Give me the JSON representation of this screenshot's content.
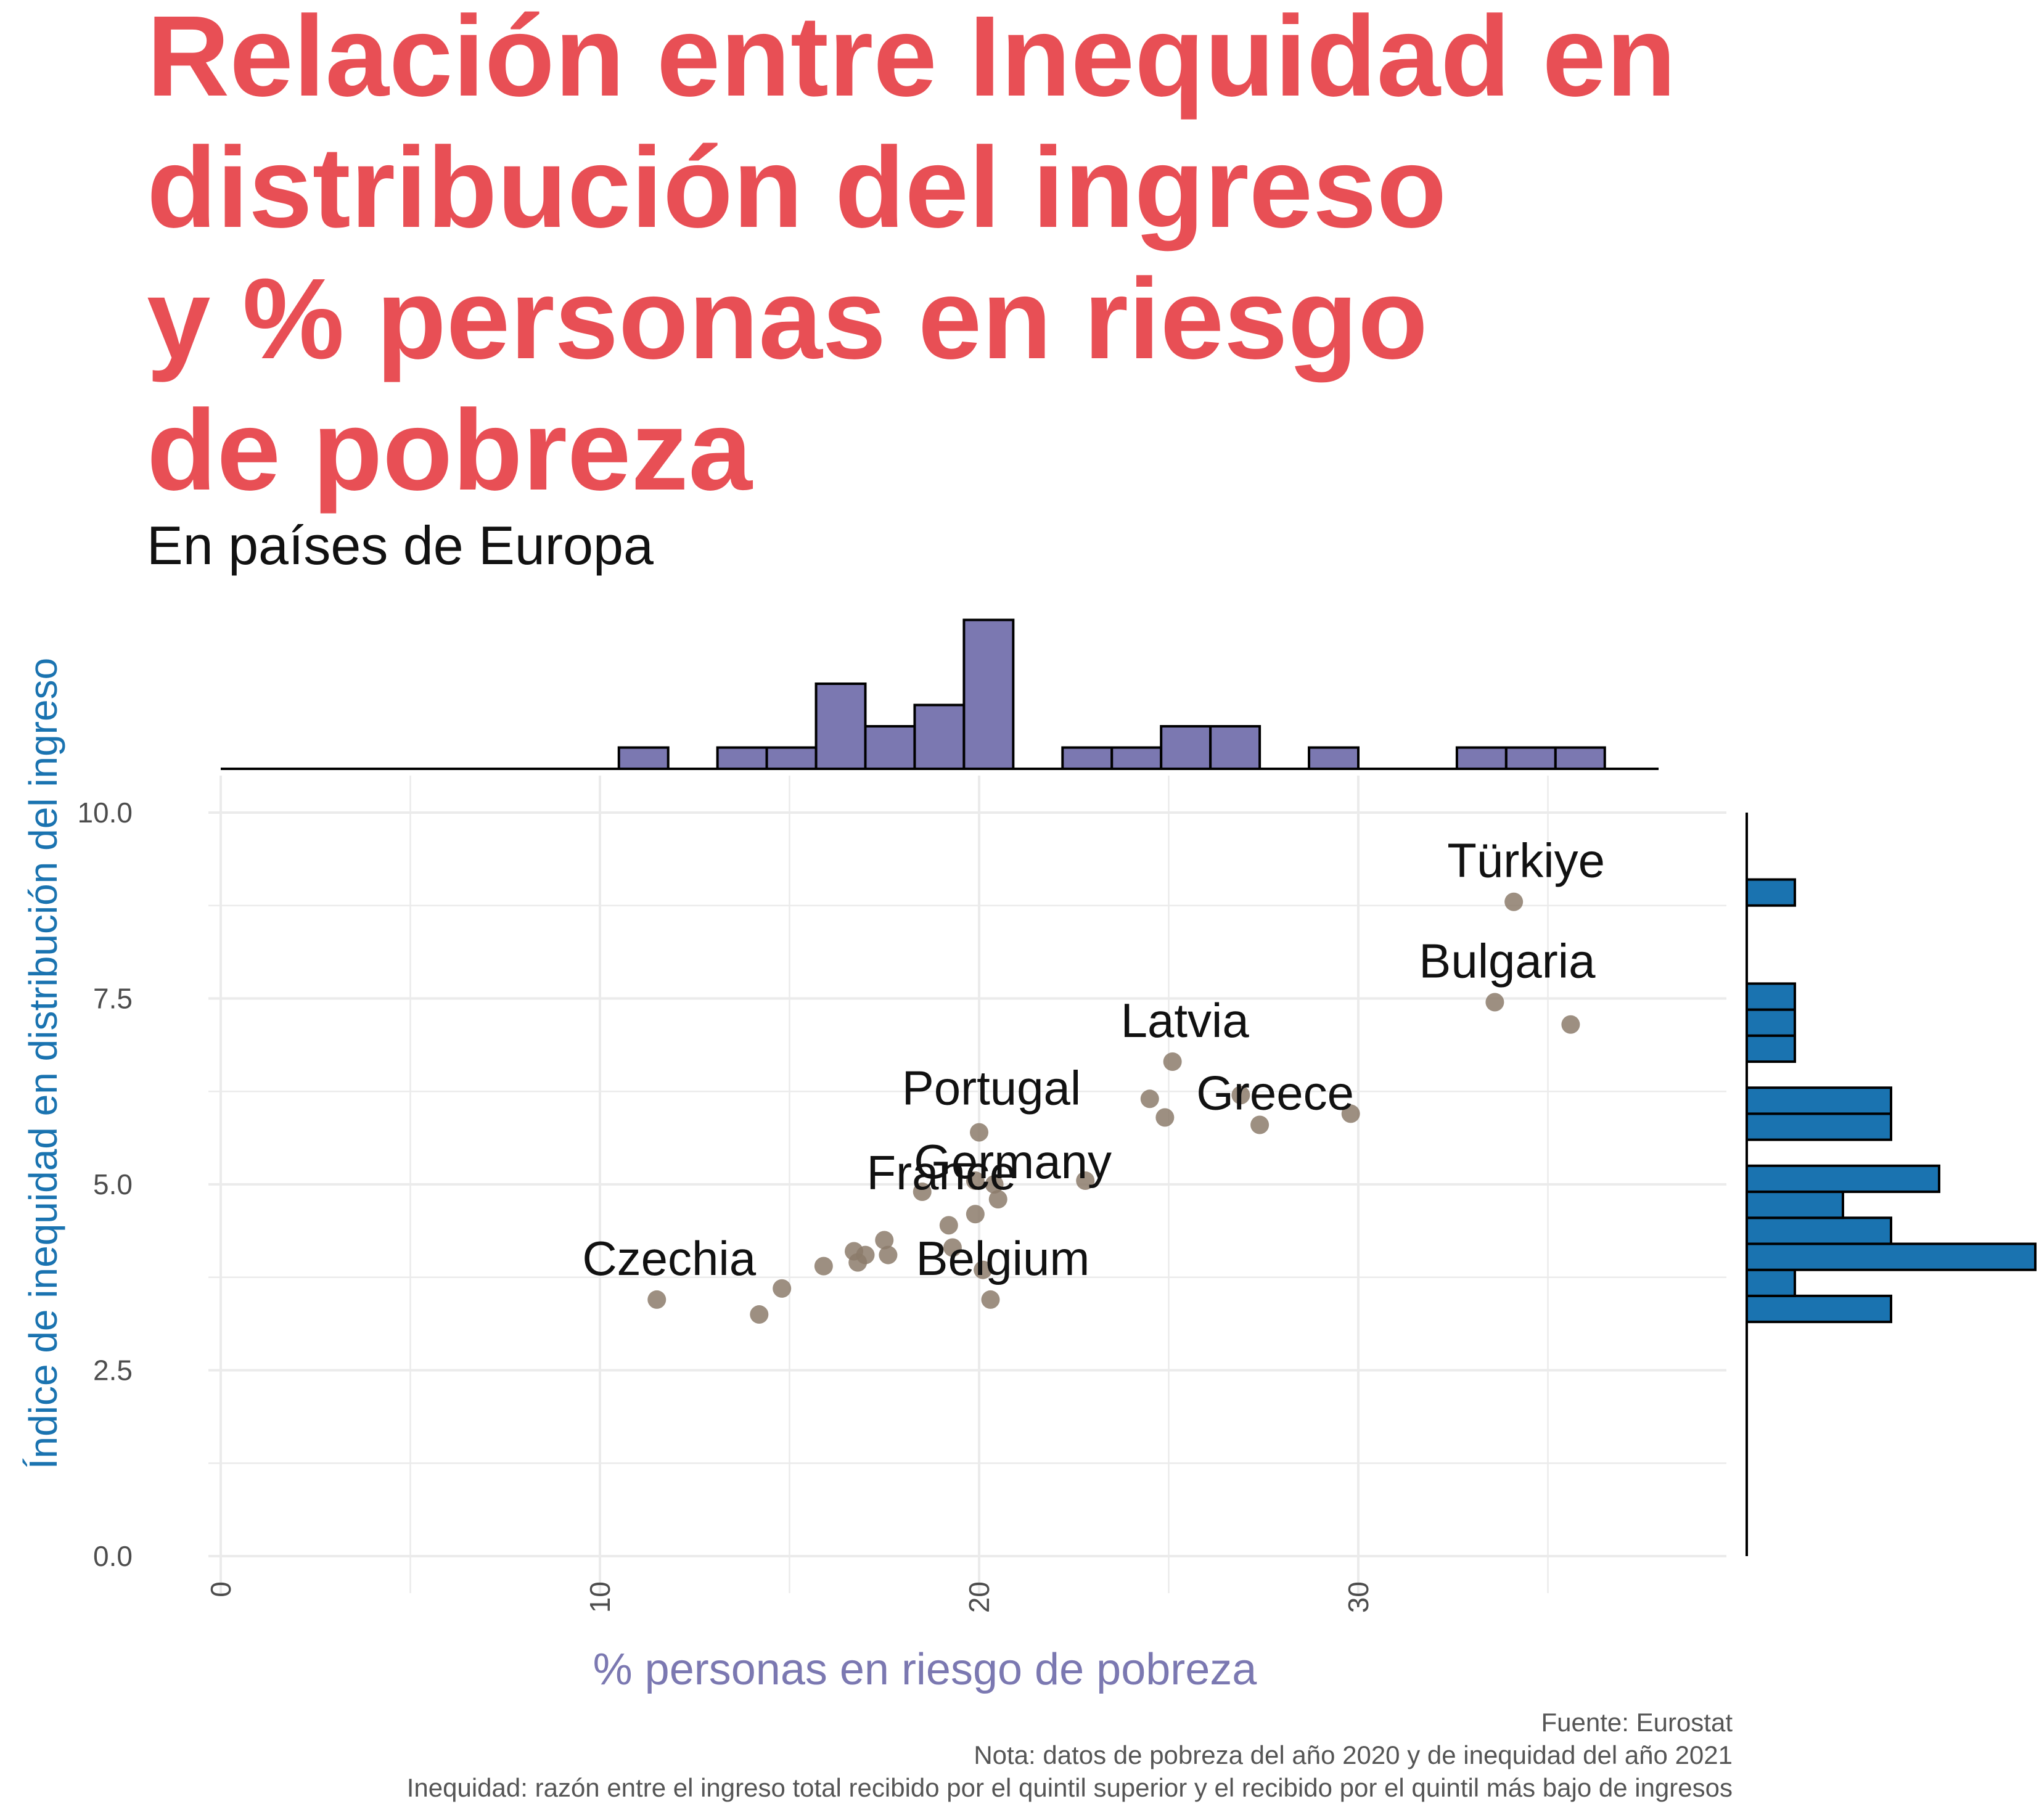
{
  "title_lines": [
    "Relación entre Inequidad en",
    "distribución del ingreso",
    "y % personas en riesgo",
    "de pobreza"
  ],
  "subtitle": "En países de Europa",
  "caption_lines": [
    "Fuente: Eurostat",
    "Nota: datos de pobreza del año 2020 y de inequidad del año 2021",
    "Inequidad: razón entre el ingreso total recibido por el quintil superior y el recibido por el quintil más bajo de ingresos"
  ],
  "colors": {
    "title": "#e84f55",
    "points": "#8c7b6b",
    "x_hist_fill": "#7b78b1",
    "y_hist_fill": "#1a73b0",
    "grid": "#ebebeb"
  },
  "chart_data": {
    "type": "scatter",
    "xlabel": "% personas en riesgo de pobreza",
    "ylabel": "Índice de inequidad en distribución del ingreso",
    "xlim": [
      0,
      37
    ],
    "ylim": [
      0,
      10
    ],
    "x_ticks": [
      "0",
      "10",
      "20",
      "30"
    ],
    "x_tick_values": [
      0,
      10,
      20,
      30
    ],
    "y_ticks": [
      "0.0",
      "2.5",
      "5.0",
      "7.5",
      "10.0"
    ],
    "y_tick_values": [
      0,
      2.5,
      5,
      7.5,
      10
    ],
    "grid": true,
    "points": [
      {
        "x": 11.5,
        "y": 3.45,
        "label": "Czechia"
      },
      {
        "x": 14.2,
        "y": 3.25
      },
      {
        "x": 14.8,
        "y": 3.6
      },
      {
        "x": 15.9,
        "y": 3.9
      },
      {
        "x": 16.7,
        "y": 4.1
      },
      {
        "x": 16.8,
        "y": 3.95
      },
      {
        "x": 17.0,
        "y": 4.05
      },
      {
        "x": 17.5,
        "y": 4.25
      },
      {
        "x": 17.6,
        "y": 4.05
      },
      {
        "x": 18.5,
        "y": 4.9
      },
      {
        "x": 19.2,
        "y": 4.45
      },
      {
        "x": 19.3,
        "y": 4.15
      },
      {
        "x": 19.9,
        "y": 4.6,
        "label": "France"
      },
      {
        "x": 19.9,
        "y": 5.05
      },
      {
        "x": 20.0,
        "y": 5.7,
        "label": "Portugal"
      },
      {
        "x": 20.1,
        "y": 3.85
      },
      {
        "x": 20.3,
        "y": 3.45,
        "label": "Belgium"
      },
      {
        "x": 20.5,
        "y": 4.8
      },
      {
        "x": 20.4,
        "y": 5.0,
        "label": "Germany"
      },
      {
        "x": 22.8,
        "y": 5.05
      },
      {
        "x": 24.5,
        "y": 6.15
      },
      {
        "x": 24.9,
        "y": 5.9
      },
      {
        "x": 25.1,
        "y": 6.65,
        "label": "Latvia"
      },
      {
        "x": 26.9,
        "y": 6.2
      },
      {
        "x": 27.4,
        "y": 5.8,
        "label": "Greece"
      },
      {
        "x": 29.8,
        "y": 5.95
      },
      {
        "x": 33.6,
        "y": 7.45,
        "label": "Bulgaria"
      },
      {
        "x": 34.1,
        "y": 8.8,
        "label": "Türkiye"
      },
      {
        "x": 35.6,
        "y": 7.15
      }
    ],
    "x_histogram": [
      {
        "x0": 10.5,
        "x1": 11.8,
        "count": 1
      },
      {
        "x0": 13.1,
        "x1": 14.4,
        "count": 1
      },
      {
        "x0": 14.4,
        "x1": 15.7,
        "count": 1
      },
      {
        "x0": 15.7,
        "x1": 17.0,
        "count": 4
      },
      {
        "x0": 17.0,
        "x1": 18.3,
        "count": 2
      },
      {
        "x0": 18.3,
        "x1": 19.6,
        "count": 3
      },
      {
        "x0": 19.6,
        "x1": 20.9,
        "count": 7
      },
      {
        "x0": 22.2,
        "x1": 23.5,
        "count": 1
      },
      {
        "x0": 23.5,
        "x1": 24.8,
        "count": 1
      },
      {
        "x0": 24.8,
        "x1": 26.1,
        "count": 2
      },
      {
        "x0": 26.1,
        "x1": 27.4,
        "count": 2
      },
      {
        "x0": 28.7,
        "x1": 30.0,
        "count": 1
      },
      {
        "x0": 32.6,
        "x1": 33.9,
        "count": 1
      },
      {
        "x0": 33.9,
        "x1": 35.2,
        "count": 1
      },
      {
        "x0": 35.2,
        "x1": 36.5,
        "count": 1
      }
    ],
    "y_histogram": [
      {
        "y0": 3.15,
        "y1": 3.5,
        "count": 3
      },
      {
        "y0": 3.5,
        "y1": 3.85,
        "count": 1
      },
      {
        "y0": 3.85,
        "y1": 4.2,
        "count": 6
      },
      {
        "y0": 4.2,
        "y1": 4.55,
        "count": 3
      },
      {
        "y0": 4.55,
        "y1": 4.9,
        "count": 2
      },
      {
        "y0": 4.9,
        "y1": 5.25,
        "count": 4
      },
      {
        "y0": 5.6,
        "y1": 5.95,
        "count": 3
      },
      {
        "y0": 5.95,
        "y1": 6.3,
        "count": 3
      },
      {
        "y0": 6.65,
        "y1": 7.0,
        "count": 1
      },
      {
        "y0": 7.0,
        "y1": 7.35,
        "count": 1
      },
      {
        "y0": 7.35,
        "y1": 7.7,
        "count": 1
      },
      {
        "y0": 8.75,
        "y1": 9.1,
        "count": 1
      }
    ]
  }
}
